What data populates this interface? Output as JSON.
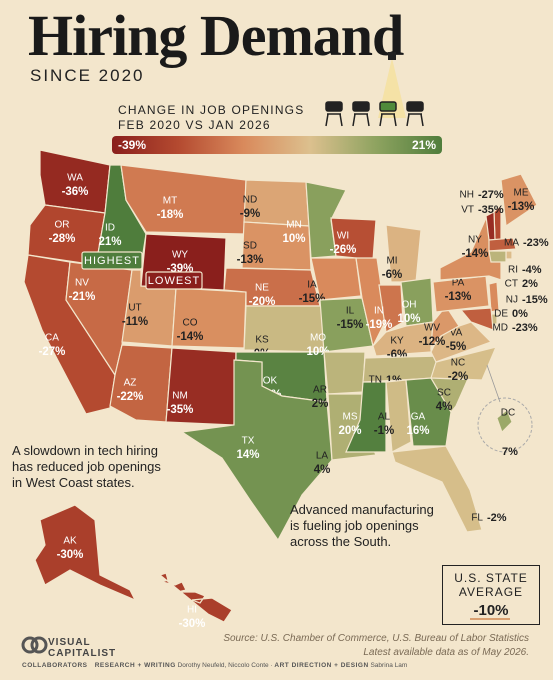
{
  "title": "Hiring Demand",
  "subtitle": "SINCE 2020",
  "legend": {
    "title_line1": "CHANGE IN JOB OPENINGS",
    "title_line2": "FEB 2020 VS JAN 2026",
    "min": -39,
    "min_label": "-39%",
    "max": 21,
    "max_label": "21%",
    "colors": [
      "#8a1f1c",
      "#b44a30",
      "#d98a5c",
      "#dcc08e",
      "#8ea360",
      "#4f7d3c"
    ]
  },
  "badges": {
    "highest": "HIGHEST",
    "lowest": "LOWEST"
  },
  "states": [
    {
      "code": "WA",
      "value": -36,
      "label": "-36%"
    },
    {
      "code": "OR",
      "value": -28,
      "label": "-28%"
    },
    {
      "code": "CA",
      "value": -27,
      "label": "-27%"
    },
    {
      "code": "ID",
      "value": 21,
      "label": "21%"
    },
    {
      "code": "NV",
      "value": -21,
      "label": "-21%"
    },
    {
      "code": "MT",
      "value": -18,
      "label": "-18%"
    },
    {
      "code": "WY",
      "value": -39,
      "label": "-39%"
    },
    {
      "code": "UT",
      "value": -11,
      "label": "-11%"
    },
    {
      "code": "AZ",
      "value": -22,
      "label": "-22%"
    },
    {
      "code": "CO",
      "value": -14,
      "label": "-14%"
    },
    {
      "code": "NM",
      "value": -35,
      "label": "-35%"
    },
    {
      "code": "ND",
      "value": -9,
      "label": "-9%"
    },
    {
      "code": "SD",
      "value": -13,
      "label": "-13%"
    },
    {
      "code": "NE",
      "value": -20,
      "label": "-20%"
    },
    {
      "code": "KS",
      "value": 0,
      "label": "0%"
    },
    {
      "code": "OK",
      "value": 19,
      "label": "19%"
    },
    {
      "code": "TX",
      "value": 14,
      "label": "14%"
    },
    {
      "code": "MN",
      "value": 10,
      "label": "10%"
    },
    {
      "code": "IA",
      "value": -15,
      "label": "-15%"
    },
    {
      "code": "MO",
      "value": 10,
      "label": "10%"
    },
    {
      "code": "AR",
      "value": 2,
      "label": "2%"
    },
    {
      "code": "LA",
      "value": 4,
      "label": "4%"
    },
    {
      "code": "WI",
      "value": -26,
      "label": "-26%"
    },
    {
      "code": "IL",
      "value": -15,
      "label": "-15%"
    },
    {
      "code": "MS",
      "value": 20,
      "label": "20%"
    },
    {
      "code": "MI",
      "value": -6,
      "label": "-6%"
    },
    {
      "code": "IN",
      "value": -19,
      "label": "-19%"
    },
    {
      "code": "OH",
      "value": 10,
      "label": "10%"
    },
    {
      "code": "KY",
      "value": -6,
      "label": "-6%"
    },
    {
      "code": "TN",
      "value": 1,
      "label": "1%"
    },
    {
      "code": "AL",
      "value": -1,
      "label": "-1%"
    },
    {
      "code": "GA",
      "value": 16,
      "label": "16%"
    },
    {
      "code": "FL",
      "value": -2,
      "label": "-2%"
    },
    {
      "code": "SC",
      "value": 4,
      "label": "4%"
    },
    {
      "code": "NC",
      "value": -2,
      "label": "-2%"
    },
    {
      "code": "VA",
      "value": -5,
      "label": "-5%"
    },
    {
      "code": "WV",
      "value": -12,
      "label": "-12%"
    },
    {
      "code": "PA",
      "value": -13,
      "label": "-13%"
    },
    {
      "code": "NY",
      "value": -14,
      "label": "-14%"
    },
    {
      "code": "ME",
      "value": -13,
      "label": "-13%"
    },
    {
      "code": "NH",
      "value": -27,
      "label": "-27%"
    },
    {
      "code": "VT",
      "value": -35,
      "label": "-35%"
    },
    {
      "code": "MA",
      "value": -23,
      "label": "-23%"
    },
    {
      "code": "RI",
      "value": -4,
      "label": "-4%"
    },
    {
      "code": "CT",
      "value": 2,
      "label": "2%"
    },
    {
      "code": "NJ",
      "value": -15,
      "label": "-15%"
    },
    {
      "code": "DE",
      "value": 0,
      "label": "0%"
    },
    {
      "code": "MD",
      "value": -23,
      "label": "-23%"
    },
    {
      "code": "DC",
      "value": 7,
      "label": "7%"
    },
    {
      "code": "AK",
      "value": -30,
      "label": "-30%"
    },
    {
      "code": "HI",
      "value": -30,
      "label": "-30%"
    }
  ],
  "annotations": {
    "west": "A slowdown in tech hiring has reduced job openings in West Coast states.",
    "south": "Advanced manufacturing is fueling job openings across the South."
  },
  "average": {
    "title": "U.S. STATE AVERAGE",
    "value": -10,
    "label": "-10%"
  },
  "source": {
    "line1": "Source: U.S. Chamber of Commerce, U.S. Bureau of Labor Statistics",
    "line2": "Latest available data as of May 2026."
  },
  "logo": "VISUAL CAPITALIST",
  "credits": {
    "heading": "COLLABORATORS",
    "research_role": "RESEARCH + WRITING",
    "research_names": "Dorothy Neufeld, Niccolo Conte",
    "design_role": "ART DIRECTION + DESIGN",
    "design_names": "Sabrina Lam"
  }
}
